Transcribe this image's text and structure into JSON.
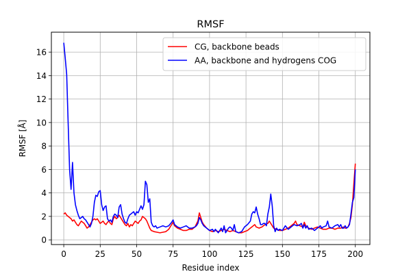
{
  "chart_data": {
    "type": "line",
    "title": "RMSF",
    "xlabel": "Residue index",
    "ylabel": "RMSF [Å]",
    "xlim": [
      -8.5,
      210
    ],
    "ylim": [
      -0.4,
      17.7
    ],
    "xticks": [
      0,
      25,
      50,
      75,
      100,
      125,
      150,
      175,
      200
    ],
    "yticks": [
      0,
      2,
      4,
      6,
      8,
      10,
      12,
      14,
      16
    ],
    "grid": true,
    "legend_position": "upper right",
    "series": [
      {
        "name": "CG, backbone beads",
        "color": "#ff0000",
        "points": [
          [
            0,
            2.2
          ],
          [
            1,
            2.3
          ],
          [
            2,
            2.1
          ],
          [
            3,
            2.0
          ],
          [
            4,
            1.9
          ],
          [
            5,
            1.8
          ],
          [
            6,
            1.6
          ],
          [
            7,
            1.7
          ],
          [
            8,
            1.5
          ],
          [
            9,
            1.3
          ],
          [
            10,
            1.2
          ],
          [
            11,
            1.4
          ],
          [
            12,
            1.6
          ],
          [
            13,
            1.5
          ],
          [
            14,
            1.4
          ],
          [
            15,
            1.2
          ],
          [
            16,
            1.0
          ],
          [
            17,
            1.1
          ],
          [
            18,
            1.3
          ],
          [
            19,
            1.5
          ],
          [
            20,
            1.7
          ],
          [
            21,
            1.8
          ],
          [
            22,
            1.7
          ],
          [
            23,
            1.8
          ],
          [
            24,
            1.6
          ],
          [
            25,
            1.4
          ],
          [
            26,
            1.5
          ],
          [
            27,
            1.6
          ],
          [
            28,
            1.4
          ],
          [
            29,
            1.3
          ],
          [
            30,
            1.5
          ],
          [
            31,
            1.6
          ],
          [
            32,
            1.4
          ],
          [
            33,
            1.3
          ],
          [
            34,
            1.8
          ],
          [
            35,
            2.0
          ],
          [
            36,
            1.8
          ],
          [
            37,
            1.9
          ],
          [
            38,
            2.1
          ],
          [
            39,
            1.9
          ],
          [
            40,
            1.7
          ],
          [
            41,
            1.5
          ],
          [
            42,
            1.3
          ],
          [
            43,
            1.2
          ],
          [
            44,
            1.4
          ],
          [
            45,
            1.1
          ],
          [
            46,
            1.3
          ],
          [
            47,
            1.2
          ],
          [
            48,
            1.4
          ],
          [
            49,
            1.6
          ],
          [
            50,
            1.5
          ],
          [
            51,
            1.4
          ],
          [
            52,
            1.6
          ],
          [
            53,
            1.7
          ],
          [
            54,
            2.0
          ],
          [
            55,
            1.9
          ],
          [
            56,
            1.8
          ],
          [
            57,
            1.6
          ],
          [
            58,
            1.3
          ],
          [
            59,
            1.0
          ],
          [
            60,
            0.8
          ],
          [
            62,
            0.7
          ],
          [
            64,
            0.65
          ],
          [
            66,
            0.6
          ],
          [
            68,
            0.65
          ],
          [
            70,
            0.7
          ],
          [
            72,
            0.9
          ],
          [
            73,
            1.1
          ],
          [
            74,
            1.3
          ],
          [
            75,
            1.5
          ],
          [
            76,
            1.2
          ],
          [
            78,
            1.0
          ],
          [
            80,
            0.9
          ],
          [
            82,
            0.8
          ],
          [
            84,
            0.8
          ],
          [
            86,
            0.9
          ],
          [
            88,
            0.9
          ],
          [
            90,
            1.1
          ],
          [
            92,
            1.6
          ],
          [
            93,
            2.3
          ],
          [
            94,
            1.9
          ],
          [
            95,
            1.5
          ],
          [
            96,
            1.3
          ],
          [
            98,
            1.0
          ],
          [
            100,
            0.8
          ],
          [
            102,
            0.7
          ],
          [
            104,
            0.8
          ],
          [
            106,
            0.7
          ],
          [
            108,
            0.8
          ],
          [
            110,
            0.9
          ],
          [
            112,
            0.8
          ],
          [
            114,
            0.7
          ],
          [
            116,
            0.8
          ],
          [
            118,
            0.7
          ],
          [
            120,
            0.6
          ],
          [
            122,
            0.6
          ],
          [
            124,
            0.7
          ],
          [
            126,
            0.8
          ],
          [
            128,
            1.0
          ],
          [
            130,
            1.2
          ],
          [
            131,
            1.3
          ],
          [
            132,
            1.1
          ],
          [
            134,
            1.0
          ],
          [
            136,
            1.1
          ],
          [
            138,
            1.3
          ],
          [
            140,
            1.4
          ],
          [
            141,
            1.6
          ],
          [
            142,
            1.4
          ],
          [
            144,
            1.0
          ],
          [
            146,
            0.9
          ],
          [
            148,
            0.8
          ],
          [
            150,
            0.8
          ],
          [
            152,
            0.9
          ],
          [
            154,
            1.0
          ],
          [
            156,
            1.2
          ],
          [
            158,
            1.4
          ],
          [
            159,
            1.6
          ],
          [
            160,
            1.3
          ],
          [
            162,
            1.2
          ],
          [
            164,
            1.1
          ],
          [
            165,
            1.5
          ],
          [
            166,
            1.2
          ],
          [
            168,
            1.0
          ],
          [
            170,
            0.9
          ],
          [
            172,
            1.0
          ],
          [
            174,
            1.1
          ],
          [
            176,
            1.0
          ],
          [
            178,
            0.9
          ],
          [
            180,
            0.9
          ],
          [
            182,
            1.0
          ],
          [
            184,
            1.0
          ],
          [
            186,
            0.9
          ],
          [
            188,
            1.0
          ],
          [
            190,
            1.0
          ],
          [
            192,
            1.1
          ],
          [
            193,
            1.0
          ],
          [
            194,
            1.0
          ],
          [
            195,
            1.1
          ],
          [
            196,
            1.4
          ],
          [
            197,
            1.9
          ],
          [
            198,
            3.0
          ],
          [
            199,
            4.8
          ],
          [
            200,
            6.5
          ]
        ]
      },
      {
        "name": "AA, backbone and hydrogens COG",
        "color": "#0000ff",
        "points": [
          [
            0,
            16.8
          ],
          [
            1,
            15.5
          ],
          [
            2,
            14.1
          ],
          [
            3,
            10.0
          ],
          [
            4,
            6.0
          ],
          [
            5,
            4.3
          ],
          [
            6,
            6.6
          ],
          [
            7,
            4.0
          ],
          [
            8,
            3.0
          ],
          [
            9,
            2.5
          ],
          [
            10,
            2.1
          ],
          [
            11,
            1.8
          ],
          [
            12,
            1.9
          ],
          [
            13,
            2.0
          ],
          [
            14,
            1.8
          ],
          [
            15,
            1.7
          ],
          [
            16,
            1.5
          ],
          [
            17,
            1.3
          ],
          [
            18,
            1.1
          ],
          [
            19,
            1.4
          ],
          [
            20,
            2.0
          ],
          [
            21,
            3.2
          ],
          [
            22,
            3.8
          ],
          [
            23,
            3.7
          ],
          [
            24,
            4.1
          ],
          [
            25,
            4.2
          ],
          [
            26,
            3.0
          ],
          [
            27,
            2.5
          ],
          [
            28,
            2.8
          ],
          [
            29,
            2.9
          ],
          [
            30,
            1.8
          ],
          [
            31,
            1.6
          ],
          [
            32,
            1.7
          ],
          [
            33,
            1.5
          ],
          [
            34,
            2.0
          ],
          [
            35,
            2.2
          ],
          [
            36,
            2.1
          ],
          [
            37,
            1.9
          ],
          [
            38,
            2.8
          ],
          [
            39,
            3.0
          ],
          [
            40,
            2.2
          ],
          [
            41,
            1.8
          ],
          [
            42,
            1.5
          ],
          [
            43,
            1.4
          ],
          [
            44,
            1.8
          ],
          [
            45,
            2.1
          ],
          [
            46,
            2.2
          ],
          [
            47,
            2.3
          ],
          [
            48,
            2.4
          ],
          [
            49,
            2.1
          ],
          [
            50,
            2.4
          ],
          [
            51,
            2.3
          ],
          [
            52,
            2.6
          ],
          [
            53,
            2.9
          ],
          [
            54,
            2.6
          ],
          [
            55,
            3.0
          ],
          [
            56,
            5.0
          ],
          [
            57,
            4.7
          ],
          [
            58,
            3.2
          ],
          [
            59,
            3.5
          ],
          [
            60,
            1.5
          ],
          [
            61,
            1.2
          ],
          [
            62,
            1.1
          ],
          [
            63,
            1.2
          ],
          [
            64,
            1.0
          ],
          [
            66,
            1.1
          ],
          [
            68,
            1.2
          ],
          [
            70,
            1.1
          ],
          [
            72,
            1.2
          ],
          [
            74,
            1.5
          ],
          [
            75,
            1.7
          ],
          [
            76,
            1.3
          ],
          [
            78,
            1.1
          ],
          [
            80,
            1.0
          ],
          [
            82,
            1.1
          ],
          [
            84,
            1.2
          ],
          [
            86,
            1.0
          ],
          [
            88,
            1.0
          ],
          [
            90,
            1.1
          ],
          [
            91,
            1.2
          ],
          [
            92,
            1.4
          ],
          [
            93,
            1.9
          ],
          [
            94,
            1.7
          ],
          [
            95,
            1.4
          ],
          [
            96,
            1.2
          ],
          [
            98,
            1.0
          ],
          [
            100,
            0.8
          ],
          [
            102,
            0.9
          ],
          [
            103,
            0.7
          ],
          [
            104,
            0.9
          ],
          [
            106,
            0.6
          ],
          [
            108,
            1.0
          ],
          [
            109,
            0.7
          ],
          [
            110,
            1.2
          ],
          [
            111,
            0.6
          ],
          [
            113,
            1.0
          ],
          [
            114,
            1.1
          ],
          [
            115,
            1.0
          ],
          [
            116,
            0.8
          ],
          [
            117,
            1.3
          ],
          [
            118,
            0.7
          ],
          [
            120,
            0.6
          ],
          [
            122,
            0.7
          ],
          [
            124,
            1.1
          ],
          [
            126,
            1.3
          ],
          [
            128,
            1.6
          ],
          [
            129,
            2.2
          ],
          [
            130,
            2.4
          ],
          [
            131,
            2.3
          ],
          [
            132,
            2.8
          ],
          [
            133,
            2.2
          ],
          [
            134,
            1.8
          ],
          [
            135,
            1.3
          ],
          [
            136,
            1.3
          ],
          [
            137,
            1.4
          ],
          [
            138,
            1.4
          ],
          [
            139,
            1.2
          ],
          [
            140,
            2.2
          ],
          [
            141,
            2.8
          ],
          [
            142,
            3.9
          ],
          [
            143,
            2.9
          ],
          [
            144,
            1.2
          ],
          [
            145,
            0.7
          ],
          [
            146,
            1.0
          ],
          [
            147,
            0.8
          ],
          [
            148,
            0.9
          ],
          [
            150,
            0.8
          ],
          [
            152,
            1.2
          ],
          [
            154,
            0.9
          ],
          [
            156,
            1.1
          ],
          [
            158,
            1.3
          ],
          [
            160,
            1.2
          ],
          [
            162,
            1.3
          ],
          [
            163,
            1.4
          ],
          [
            164,
            1.0
          ],
          [
            165,
            1.3
          ],
          [
            166,
            1.0
          ],
          [
            167,
            1.2
          ],
          [
            168,
            0.9
          ],
          [
            170,
            1.0
          ],
          [
            172,
            0.8
          ],
          [
            174,
            1.0
          ],
          [
            176,
            1.2
          ],
          [
            177,
            1.0
          ],
          [
            178,
            1.1
          ],
          [
            180,
            1.2
          ],
          [
            181,
            1.6
          ],
          [
            182,
            1.1
          ],
          [
            184,
            1.0
          ],
          [
            186,
            1.2
          ],
          [
            188,
            1.3
          ],
          [
            189,
            1.1
          ],
          [
            190,
            1.3
          ],
          [
            191,
            1.0
          ],
          [
            192,
            1.0
          ],
          [
            193,
            1.2
          ],
          [
            194,
            1.0
          ],
          [
            195,
            1.1
          ],
          [
            196,
            1.3
          ],
          [
            197,
            2.2
          ],
          [
            198,
            3.2
          ],
          [
            199,
            3.6
          ],
          [
            200,
            6.0
          ]
        ]
      }
    ]
  }
}
